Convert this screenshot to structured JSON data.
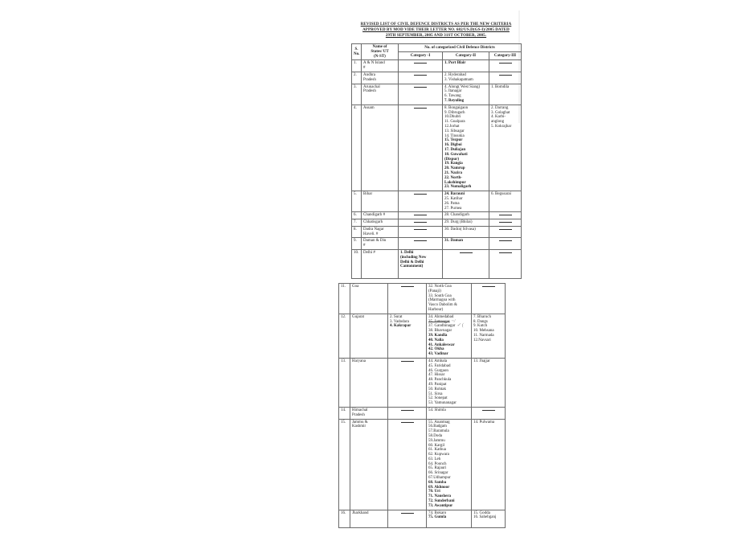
{
  "document": {
    "title_lines": [
      "REVISED LIST OF CIVIL DEFENCE DISTRICTS AS PER THE NEW CRITERIA",
      "APPROVED BY MOD VIDE THEIR LETTER NO. 682/US.D(GS-I)/2005 DATED",
      "29TH SEPTEMBER, 2005 AND 31ST OCTOBER, 2005."
    ],
    "header": {
      "sno_lines": [
        "S.",
        "No."
      ],
      "state_lines": [
        "Name of",
        "States/ UT",
        "(N-ST)"
      ],
      "span": "No. of categorized Civil Defence Districts",
      "cat1": "Category -I",
      "cat2": "Category-II",
      "cat3": "Category-III"
    },
    "page1_rows": [
      {
        "sno": "1.",
        "state": [
          "A & N Island",
          "#"
        ],
        "cat1": [
          {
            "d": true
          }
        ],
        "cat2": [
          {
            "t": "1. Port Blair",
            "b": true
          }
        ],
        "cat3": [
          {
            "d": true
          }
        ]
      },
      {
        "sno": "2.",
        "state": [
          "Andhra",
          "Pradesh"
        ],
        "cat1": [
          {
            "d": true
          }
        ],
        "cat2": [
          "2. Hyderabad",
          "3. Vishakapatnam"
        ],
        "cat3": [
          {
            "d": true
          }
        ]
      },
      {
        "sno": "3.",
        "state": [
          "Arunachal",
          "Pradesh"
        ],
        "cat1": [
          {
            "d": true
          }
        ],
        "cat2": [
          "4. Along( West Siang)",
          "5. Itanagar",
          "6. Tawang",
          {
            "t": "7. Reyuling",
            "b": true
          }
        ],
        "cat3": [
          "1. Bomdila"
        ]
      },
      {
        "sno": "4.",
        "state": [
          "Assam"
        ],
        "cat1": [
          {
            "d": true
          }
        ],
        "cat2": [
          "8. Bongaigaon",
          "9. Dibrugarh",
          "10.Dhubri",
          "11. Goalpara",
          "12.Jorhat",
          "13. Sibsagar",
          "14. Tinsukia",
          {
            "t": "15. Tezpur",
            "b": true
          },
          {
            "t": "16. Digboi",
            "b": true
          },
          {
            "t": "17. Duliajan",
            "b": true
          },
          {
            "t": "18. Guwahati",
            "b": true
          },
          {
            "t": "(Dispur)",
            "b": true
          },
          {
            "t": "19. Rangia",
            "b": true
          },
          {
            "t": "20. Namrup",
            "b": true
          },
          {
            "t": "21. Nazira",
            "b": true
          },
          {
            "t": "22. North-",
            "b": true
          },
          {
            "t": "Lakshimpur",
            "b": true
          },
          {
            "t": "23. Numaligarh",
            "b": true
          }
        ],
        "cat3": [
          "2. Darrang",
          "3. Golaghat",
          "4. Karbi-",
          "anglong",
          "5. Kokrajhar"
        ]
      },
      {
        "sno": "5.",
        "state": [
          "Bihar"
        ],
        "cat1": [
          {
            "d": true
          }
        ],
        "cat2": [
          {
            "t": "24. Barauni",
            "b": true
          },
          "25. Katihar",
          "26. Patna",
          "27. Purnea"
        ],
        "cat3": [
          "6. Begusarai"
        ]
      },
      {
        "sno": "6.",
        "state": [
          "Chandigarh #"
        ],
        "cat1": [
          {
            "d": true
          }
        ],
        "cat2": [
          "28. Chandigarh"
        ],
        "cat3": [
          {
            "d": true
          }
        ]
      },
      {
        "sno": "7.",
        "state": [
          "Chhatisgarh"
        ],
        "cat1": [
          {
            "d": true
          }
        ],
        "cat2": [
          "29. Durg (Bhilai)"
        ],
        "cat3": [
          {
            "d": true
          }
        ]
      },
      {
        "sno": "8.",
        "state": [
          "Dadra Nagar",
          "Haveli. #"
        ],
        "cat1": [
          {
            "d": true
          }
        ],
        "cat2": [
          "30. Dadra( Silvasa)"
        ],
        "cat3": [
          {
            "d": true
          }
        ]
      },
      {
        "sno": "9.",
        "state": [
          "Daman & Diu",
          "#"
        ],
        "cat1": [
          {
            "d": true
          }
        ],
        "cat2": [
          {
            "t": "31. Daman",
            "b": true
          }
        ],
        "cat3": [
          {
            "d": true
          }
        ]
      },
      {
        "sno": "10.",
        "state": [
          "Delhi #"
        ],
        "minh": 36,
        "cat1": [
          {
            "t": "1. Delhi",
            "b": true
          },
          {
            "t": "(including New",
            "b": true
          },
          {
            "t": "Delhi & Delhi",
            "b": true
          },
          {
            "t": "Cantonment)",
            "b": true
          }
        ],
        "cat2": [
          {
            "d": true
          }
        ],
        "cat3": [
          {
            "d": true
          }
        ]
      }
    ],
    "page2_rows": [
      {
        "sno": "11.",
        "state": [
          "Goa"
        ],
        "cat1": [
          {
            "d": true
          }
        ],
        "cat2": [
          "32. North Goa",
          "(Panaji)",
          "33. South Goa",
          "(Marmagoa with",
          "Vasco Dabolim &",
          "Harbour)"
        ],
        "cat3": [
          {
            "d": true
          }
        ]
      },
      {
        "sno": "12.",
        "state": [
          "Gujarat"
        ],
        "cat1": [
          "2. Surat",
          "3. Vadodara",
          {
            "t": "4. Kakrapar",
            "b": true
          }
        ],
        "cat2": [
          "34. Ahmedabad",
          {
            "t": "35. Jamnagar",
            "s": true,
            "hw": "~/"
          },
          {
            "t": "37. Gandhinagar",
            "hw": "✓ ("
          },
          "38. Bhavnagar",
          {
            "t": "39. Kandla",
            "b": true
          },
          {
            "t": "40. Nalia",
            "b": true
          },
          {
            "t": "41. Ankaleswar",
            "b": true
          },
          {
            "t": "42. Okha",
            "b": true
          },
          {
            "t": "43. Vadinar",
            "b": true
          }
        ],
        "cat3": [
          "7. Bharuch",
          "8. Dangs",
          "9. Kutch",
          "10. Mehsana",
          "11. Narmada",
          "12.Navsari"
        ]
      },
      {
        "sno": "13.",
        "state": [
          "Haryana"
        ],
        "cat1": [
          {
            "d": true
          }
        ],
        "cat2": [
          "44. Ambala",
          "45. Faridabad",
          "46. Gurgaon",
          "47. Hissar",
          "48. Panchkula",
          "49. Panipat",
          "50. Rohtak",
          "51. Sirsa",
          "52. Sonepat",
          "53. Yamunanagar"
        ],
        "cat3": [
          "13. Jhajjar"
        ]
      },
      {
        "sno": "14.",
        "state": [
          "Himachal",
          "Pradesh"
        ],
        "cat1": [
          {
            "d": true
          }
        ],
        "cat2": [
          "54. Shimla"
        ],
        "cat3": [
          {
            "d": true
          }
        ]
      },
      {
        "sno": "15.",
        "state": [
          "Jammu &",
          "Kashmir"
        ],
        "cat1": [
          {
            "d": true
          }
        ],
        "cat2": [
          "55. Anantnag",
          "56.Badgam",
          "57.Baramula",
          "58.Doda",
          "59.Jammu",
          "60. Kargil",
          "61. Kathua",
          "62. Kupwara",
          "63. Leh",
          "64. Poonch",
          "65. Rajauri",
          "66. Srinagar",
          "67.Udhampur",
          {
            "t": "68. Samba",
            "b": true
          },
          {
            "t": "69. Akhnoor",
            "b": true
          },
          {
            "t": "70. Uri",
            "b": true
          },
          {
            "t": "71. Naushera",
            "b": true
          },
          {
            "t": "72. Sunderbani",
            "b": true
          },
          {
            "t": "73. Awantipur",
            "b": true
          }
        ],
        "cat3": [
          "14. Pulwama"
        ]
      },
      {
        "sno": "16.",
        "state": [
          "Jharkhand"
        ],
        "minh": 22,
        "cat1": [
          {
            "d": true
          }
        ],
        "cat2": [
          "74. Bokaro",
          {
            "t": "75. Gumla",
            "b": true
          }
        ],
        "cat3": [
          "15. Godda",
          "16. Sahebganj"
        ]
      }
    ]
  },
  "colors": {
    "ink": "#1c1c1c",
    "table_border": "#6a6a6a",
    "page_background": "#ffffff"
  }
}
